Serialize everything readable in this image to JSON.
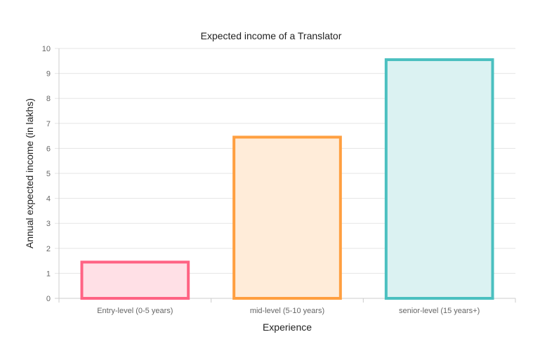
{
  "chart_data": {
    "type": "bar",
    "title": "Expected income of a Translator",
    "xlabel": "Experience",
    "ylabel": "Annual expected income (in lakhs)",
    "categories": [
      "Entry-level (0-5 years)",
      "mid-level (5-10 years)",
      "senior-level (15 years+)"
    ],
    "values": [
      1.45,
      6.45,
      9.55
    ],
    "ylim": [
      0,
      10
    ],
    "yticks": [
      "0",
      "1",
      "2",
      "3",
      "4",
      "5",
      "6",
      "7",
      "8",
      "9",
      "10"
    ],
    "grid": true,
    "legend": "none",
    "colors": {
      "stroke": [
        "#ff6384",
        "#ff9f40",
        "#4bc0c0"
      ],
      "fill": [
        "#ffe0e6",
        "#ffecd9",
        "#dbf2f2"
      ],
      "grid": "#e5e5e5",
      "axis": "#cccccc"
    }
  }
}
